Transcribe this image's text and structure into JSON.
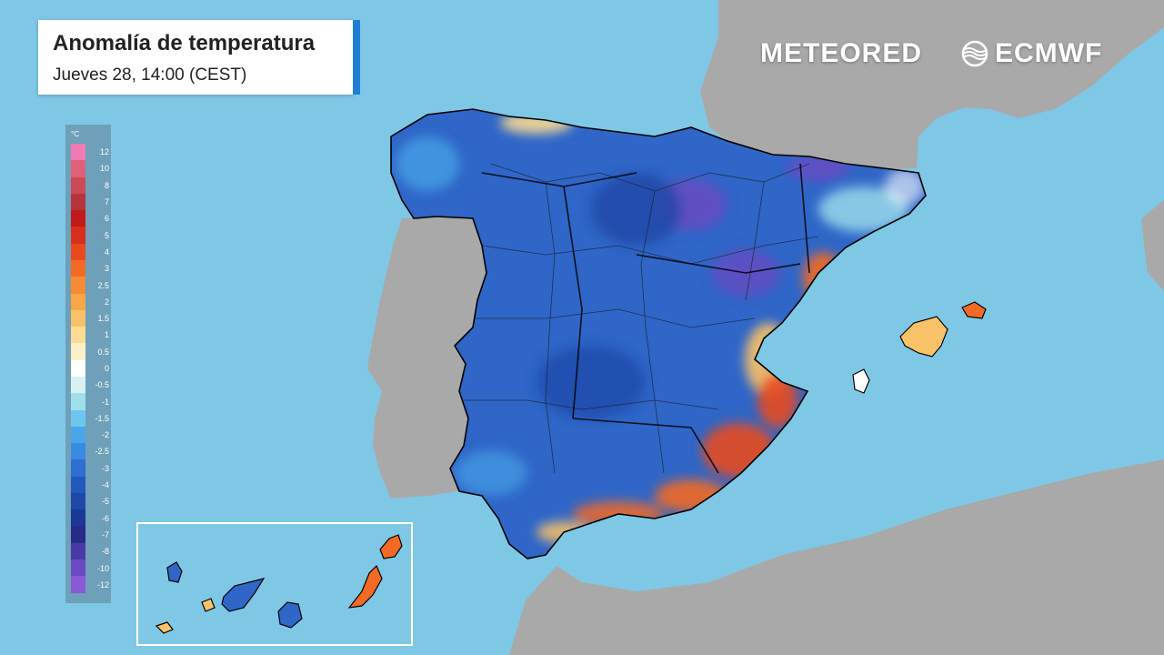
{
  "header": {
    "title": "Anomalía de temperatura",
    "subtitle": "Jueves 28, 14:00 (CEST)"
  },
  "brands": {
    "meteored": "METEORED",
    "ecmwf": "ECMWF"
  },
  "legend": {
    "unit": "°C",
    "stops": [
      {
        "label": "12",
        "color": "#f07ab3"
      },
      {
        "label": "10",
        "color": "#e0607a"
      },
      {
        "label": "8",
        "color": "#cc4a55"
      },
      {
        "label": "7",
        "color": "#b8343c"
      },
      {
        "label": "6",
        "color": "#c01a1a"
      },
      {
        "label": "5",
        "color": "#d92e1e"
      },
      {
        "label": "4",
        "color": "#e84a1e"
      },
      {
        "label": "3",
        "color": "#f26a26"
      },
      {
        "label": "2.5",
        "color": "#f78a34"
      },
      {
        "label": "2",
        "color": "#f9a648"
      },
      {
        "label": "1.5",
        "color": "#fac268"
      },
      {
        "label": "1",
        "color": "#fcdc94"
      },
      {
        "label": "0.5",
        "color": "#fdf0c8"
      },
      {
        "label": "0",
        "color": "#ffffff"
      },
      {
        "label": "-0.5",
        "color": "#d8f2f4"
      },
      {
        "label": "-1",
        "color": "#9fe0ec"
      },
      {
        "label": "-1.5",
        "color": "#6fc6ec"
      },
      {
        "label": "-2",
        "color": "#4aa6ea"
      },
      {
        "label": "-2.5",
        "color": "#3a8ae0"
      },
      {
        "label": "-3",
        "color": "#2e6fd2"
      },
      {
        "label": "-4",
        "color": "#2558bf"
      },
      {
        "label": "-5",
        "color": "#1f47a8"
      },
      {
        "label": "-6",
        "color": "#1b3994"
      },
      {
        "label": "-7",
        "color": "#262c86"
      },
      {
        "label": "-8",
        "color": "#4a3aa6"
      },
      {
        "label": "-10",
        "color": "#6a4ac2"
      },
      {
        "label": "-12",
        "color": "#8a5ad6"
      }
    ]
  },
  "colors": {
    "sea": "#7ec8e6",
    "land_outside": "#a9a9a9",
    "spain_base": "#2f66c8",
    "cold_deep": "#6a4ac2",
    "warm": "#f26a26",
    "hot": "#e84a1e",
    "mild": "#fac268",
    "inset_border": "#ffffff"
  },
  "icons": {
    "ecmwf_logo": "ecmwf-swirl-icon"
  }
}
